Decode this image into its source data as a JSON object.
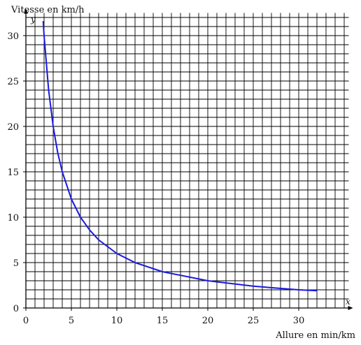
{
  "chart_data": {
    "type": "line",
    "title": "",
    "ylabel": "Vitesse en km/h",
    "xlabel": "Allure en min/km",
    "x_axis_var": "x",
    "y_axis_var": "y",
    "xlim": [
      0,
      35.5
    ],
    "ylim": [
      0,
      32.5
    ],
    "x_ticks": [
      0,
      5,
      10,
      15,
      20,
      25,
      30
    ],
    "y_ticks": [
      0,
      5,
      10,
      15,
      20,
      25,
      30
    ],
    "grid": true,
    "grid_step": 1,
    "series": [
      {
        "color": "#1a1adf",
        "points": [
          {
            "x": 1.9,
            "y": 31.6
          },
          {
            "x": 2,
            "y": 30
          },
          {
            "x": 2.5,
            "y": 24
          },
          {
            "x": 3,
            "y": 20
          },
          {
            "x": 3.5,
            "y": 17.1
          },
          {
            "x": 4,
            "y": 15
          },
          {
            "x": 5,
            "y": 12
          },
          {
            "x": 6,
            "y": 10
          },
          {
            "x": 7,
            "y": 8.6
          },
          {
            "x": 8,
            "y": 7.5
          },
          {
            "x": 10,
            "y": 6
          },
          {
            "x": 12,
            "y": 5
          },
          {
            "x": 15,
            "y": 4
          },
          {
            "x": 20,
            "y": 3
          },
          {
            "x": 25,
            "y": 2.4
          },
          {
            "x": 30,
            "y": 2
          },
          {
            "x": 32,
            "y": 1.9
          }
        ]
      }
    ]
  }
}
